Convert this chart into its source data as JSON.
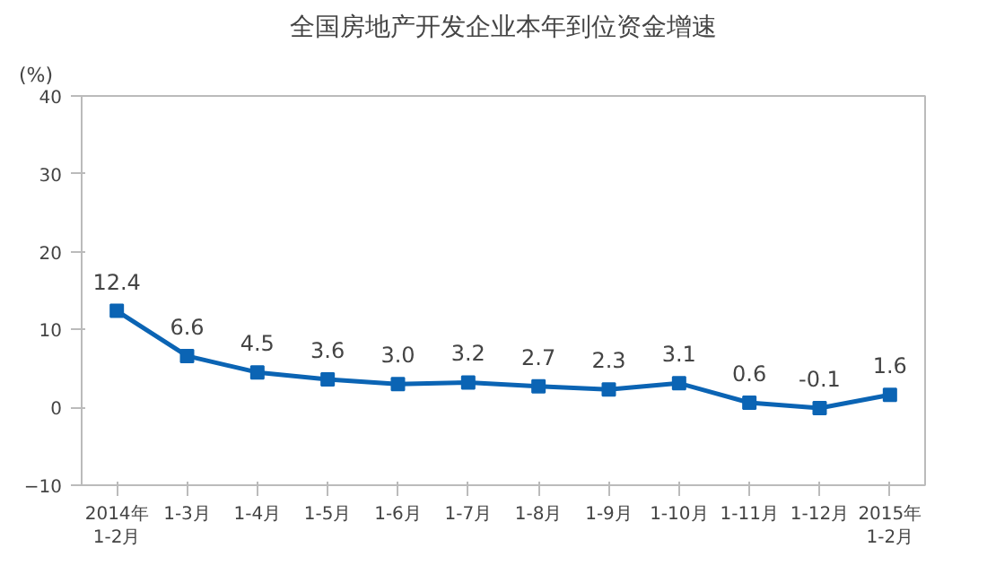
{
  "chart_data": {
    "type": "line",
    "title": "全国房地产开发企业本年到位资金增速",
    "ylabel": "(%)",
    "categories": [
      "2014年\n1-2月",
      "1-3月",
      "1-4月",
      "1-5月",
      "1-6月",
      "1-7月",
      "1-8月",
      "1-9月",
      "1-10月",
      "1-11月",
      "1-12月",
      "2015年\n1-2月"
    ],
    "series": [
      {
        "color": "#0b64b4",
        "values": [
          12.4,
          6.6,
          4.5,
          3.6,
          3.0,
          3.2,
          2.7,
          2.3,
          3.1,
          0.6,
          -0.1,
          1.6
        ],
        "value_labels": [
          "12.4",
          "6.6",
          "4.5",
          "3.6",
          "3.0",
          "3.2",
          "2.7",
          "2.3",
          "3.1",
          "0.6",
          "-0.1",
          "1.6"
        ]
      }
    ],
    "ylim": [
      -10,
      40
    ],
    "yticks": [
      -10,
      0,
      10,
      20,
      30,
      40
    ],
    "grid": false,
    "marker": "square",
    "line_style": "solid"
  }
}
